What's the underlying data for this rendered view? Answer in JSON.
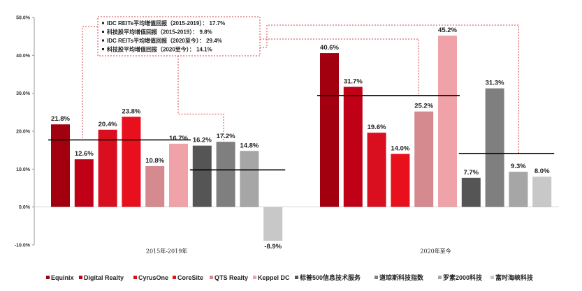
{
  "chart_data": {
    "type": "bar",
    "ylim": [
      -10,
      50
    ],
    "yticks": [
      "-10.0%",
      "0.0%",
      "10.0%",
      "20.0%",
      "30.0%",
      "40.0%",
      "50.0%"
    ],
    "categories": [
      "2015年-2019年",
      "2020年至今"
    ],
    "series": [
      {
        "name": "Equinix",
        "color": "#a3000f",
        "values": [
          21.8,
          40.6
        ],
        "labels": [
          "21.8%",
          "40.6%"
        ]
      },
      {
        "name": "Digital Realty",
        "color": "#c00016",
        "values": [
          12.6,
          31.7
        ],
        "labels": [
          "12.6%",
          "31.7%"
        ]
      },
      {
        "name": "CyrusOne",
        "color": "#d90f1f",
        "values": [
          20.4,
          19.6
        ],
        "labels": [
          "20.4%",
          "19.6%"
        ]
      },
      {
        "name": "CoreSite",
        "color": "#e8101c",
        "values": [
          23.8,
          14.0
        ],
        "labels": [
          "23.8%",
          "14.0%"
        ]
      },
      {
        "name": "QTS Realty",
        "color": "#d48a8f",
        "values": [
          10.8,
          25.2
        ],
        "labels": [
          "10.8%",
          "25.2%"
        ]
      },
      {
        "name": "Keppel DC",
        "color": "#efa3a8",
        "values": [
          16.7,
          45.2
        ],
        "labels": [
          "16.7%",
          "45.2%"
        ]
      },
      {
        "name": "标普500信息技术服务",
        "color": "#555555",
        "values": [
          16.2,
          7.7
        ],
        "labels": [
          "16.2%",
          "7.7%"
        ]
      },
      {
        "name": "道琼斯科技指数",
        "color": "#7f7f7f",
        "values": [
          17.2,
          31.3
        ],
        "labels": [
          "17.2%",
          "31.3%"
        ]
      },
      {
        "name": "罗素2000科技",
        "color": "#a6a6a6",
        "values": [
          14.8,
          9.3
        ],
        "labels": [
          "14.8%",
          "9.3%"
        ]
      },
      {
        "name": "富时海峡科技",
        "color": "#c8c8c8",
        "values": [
          -8.9,
          8.0
        ],
        "labels": [
          "-8.9%",
          "8.0%"
        ]
      }
    ],
    "averages": [
      {
        "period": "2015-2019",
        "group": "IDC REITs",
        "value": 17.7
      },
      {
        "period": "2015-2019",
        "group": "科技股",
        "value": 9.8
      },
      {
        "period": "2020至今",
        "group": "IDC REITs",
        "value": 29.4
      },
      {
        "period": "2020至今",
        "group": "科技股",
        "value": 14.1
      }
    ],
    "annotations": [
      "IDC REITs平均增值回报（2015-2019）：  17.7%",
      "科技股平均增值回报（2015-2019）：  9.8%",
      "IDC REITs平均增值回报（2020至今）：  29.4%",
      "科技股平均增值回报（2020至今）：  14.1%"
    ],
    "legend_position": "bottom",
    "grid": false
  }
}
